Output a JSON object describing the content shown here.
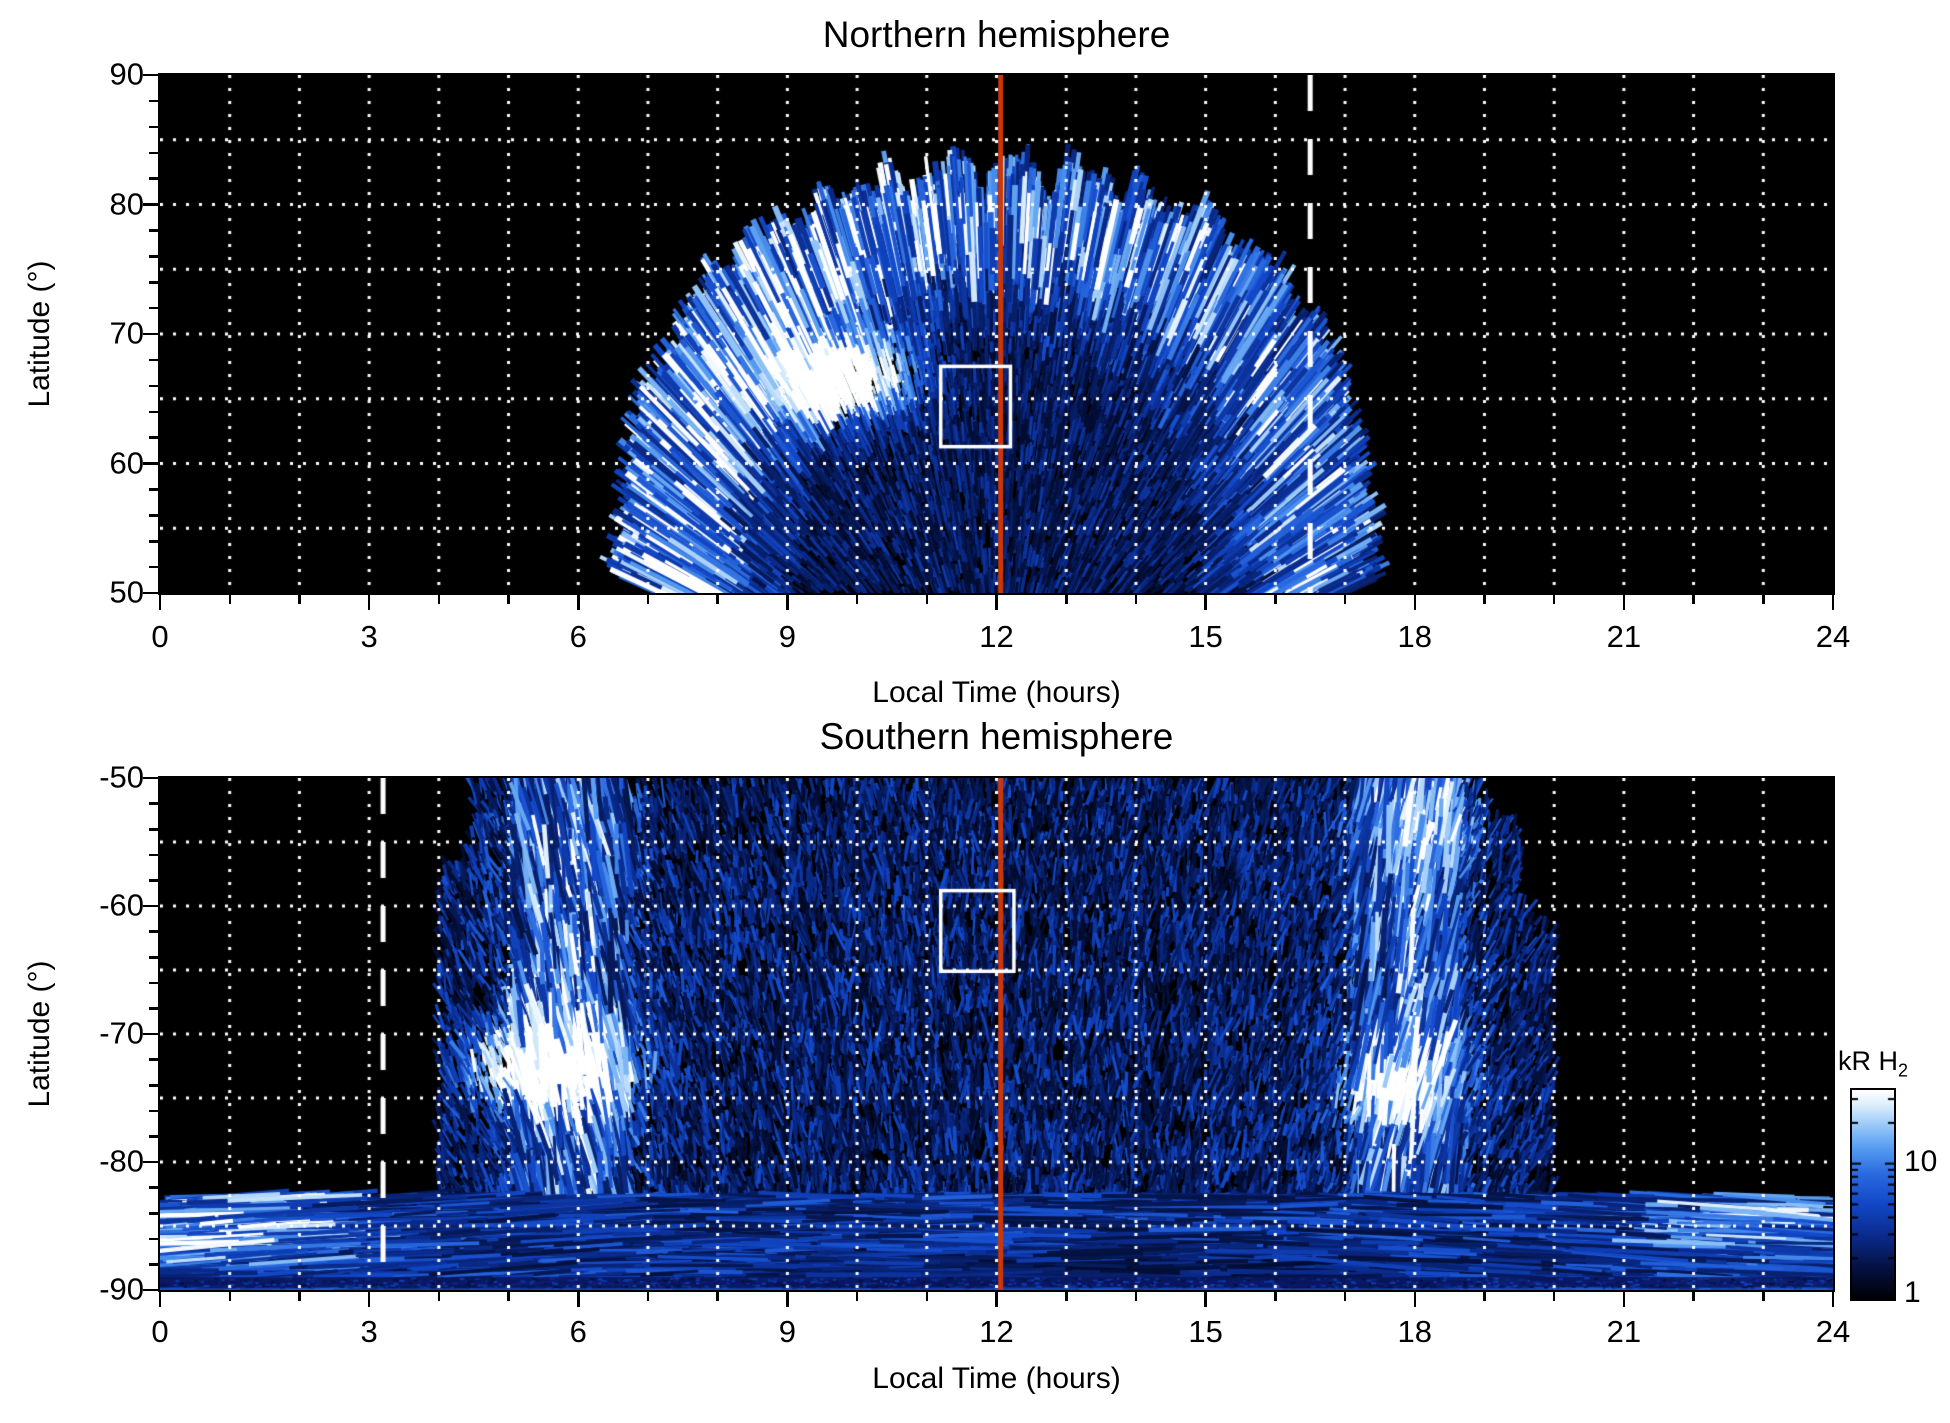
{
  "figure": {
    "background": "#ffffff",
    "text_color": "#000000"
  },
  "colorbar": {
    "label": "kR H",
    "label_sub": "2",
    "scale": "log",
    "vmin": 1,
    "vmax": 35,
    "ticks": [
      {
        "value": 10,
        "label": "10"
      },
      {
        "value": 1,
        "label": "1"
      }
    ],
    "minor_ticks": [
      2,
      3,
      4,
      5,
      6,
      7,
      8,
      9,
      20,
      30
    ],
    "colormap": [
      [
        "0.00",
        "#000004"
      ],
      [
        "0.14",
        "#04103c"
      ],
      [
        "0.30",
        "#0a2a8a"
      ],
      [
        "0.46",
        "#1248c8"
      ],
      [
        "0.60",
        "#2a6ae0"
      ],
      [
        "0.72",
        "#549af0"
      ],
      [
        "0.84",
        "#9dcbf8"
      ],
      [
        "0.93",
        "#dceefc"
      ],
      [
        "1.00",
        "#ffffff"
      ]
    ]
  },
  "chart_data": [
    {
      "type": "heatmap",
      "hemisphere": "north",
      "title": "Northern hemisphere",
      "xlabel": "Local Time (hours)",
      "ylabel": "Latitude (°)",
      "xlim": [
        0,
        24
      ],
      "ylim": [
        50,
        90
      ],
      "xticks": [
        0,
        3,
        6,
        9,
        12,
        15,
        18,
        21,
        24
      ],
      "yticks": [
        90,
        80,
        70,
        60,
        50
      ],
      "x_minor_step": 1,
      "y_minor_step": 2,
      "grid": {
        "x_step": 1,
        "y_step": 5,
        "style": "dotted",
        "color": "#ffffff"
      },
      "annotations": {
        "noon_line": {
          "x": 12.06,
          "color": "#cc3708",
          "width": 5
        },
        "dashed_line": {
          "x": 16.5,
          "color": "#ffffff",
          "width": 5,
          "dash": [
            36,
            28
          ]
        },
        "box": {
          "x0": 11.2,
          "x1": 12.2,
          "y0": 61.3,
          "y1": 67.5,
          "color": "#ffffff",
          "width": 3.5
        }
      },
      "render": {
        "seed": 421,
        "strokes": 26000,
        "dome": {
          "lt": 12,
          "lat": 38,
          "rx": 5.1,
          "ry": 42.5,
          "exp": 4
        },
        "crown": {
          "f_min": 0.78,
          "intensity": 0.55,
          "ridge": 0.28,
          "dayside_boost": 1.2
        },
        "mid": {
          "f_min": 0.6,
          "intensity": 0.38
        },
        "interior": {
          "intensity": 0.25
        },
        "blob": {
          "lt": 9.65,
          "lat": 66.8,
          "sigma_lt": 1.0,
          "sigma_lat": 3.0,
          "intensity": 1.6
        }
      }
    },
    {
      "type": "heatmap",
      "hemisphere": "south",
      "title": "Southern hemisphere",
      "xlabel": "Local Time (hours)",
      "ylabel": "Latitude (°)",
      "xlim": [
        0,
        24
      ],
      "ylim": [
        -90,
        -50
      ],
      "xticks": [
        0,
        3,
        6,
        9,
        12,
        15,
        18,
        21,
        24
      ],
      "yticks": [
        -50,
        -60,
        -70,
        -80,
        -90
      ],
      "x_minor_step": 1,
      "y_minor_step": 2,
      "grid": {
        "x_step": 1,
        "y_step": 5,
        "style": "dotted",
        "color": "#ffffff"
      },
      "annotations": {
        "noon_line": {
          "x": 12.06,
          "color": "#cc3708",
          "width": 5
        },
        "dashed_line": {
          "x": 3.2,
          "color": "#ffffff",
          "width": 5,
          "dash": [
            36,
            28
          ]
        },
        "box": {
          "x0": 11.2,
          "x1": 12.25,
          "y0": -65.1,
          "y1": -58.8,
          "color": "#ffffff",
          "width": 3.5
        }
      },
      "render": {
        "seed": 77,
        "strokes_main": 17000,
        "strokes_cap": 7000,
        "edge": {
          "left_a": 4.6,
          "right_a": 5.0,
          "lat_full": -84,
          "span": 34
        },
        "main": {
          "lt_range": [
            4.0,
            20.0
          ],
          "lat_range": [
            -83.5,
            -50
          ],
          "intensity": 0.3
        },
        "bands": [
          {
            "lt": 5.9,
            "sigma": 0.85,
            "intensity": 0.42
          },
          {
            "lt": 17.9,
            "sigma": 0.8,
            "intensity": 0.38
          }
        ],
        "patches": [
          {
            "lt": 5.6,
            "lat": -72.5,
            "sigma_lt": 1.05,
            "sigma_lat": 2.8,
            "intensity": 1.5
          },
          {
            "lt": 17.85,
            "lat": -74.0,
            "sigma_lt": 0.8,
            "sigma_lat": 3.2,
            "intensity": 0.8
          },
          {
            "lt": 18.1,
            "lat": -54.0,
            "sigma_lt": 0.75,
            "sigma_lat": 3.0,
            "intensity": 0.55
          }
        ],
        "notch": {
          "lt": 22.0,
          "lat": -78.4,
          "r_lt": 1.4,
          "r_lat": 3.9
        },
        "cap": {
          "lat_top": -82.6,
          "intensity": 0.4,
          "wedges": [
            {
              "lt": 1.1,
              "lat": -85.0,
              "sigma": 1.6,
              "intensity": 0.5
            },
            {
              "lt": 23.0,
              "lat": -84.5,
              "sigma": 1.8,
              "intensity": 0.38
            }
          ],
          "dark_row_lat": [
            -89.0,
            -89.8
          ],
          "bottom_row_lat": [
            -89.85,
            -90
          ]
        }
      }
    }
  ]
}
